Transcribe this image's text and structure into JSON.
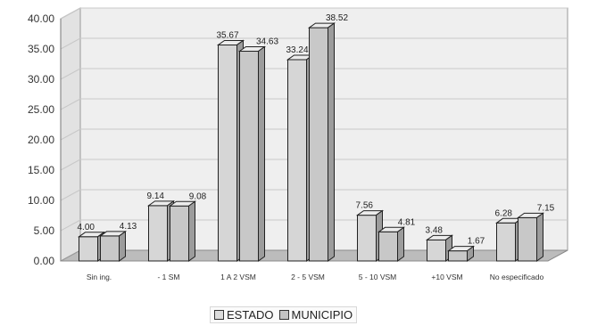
{
  "chart_data": {
    "type": "bar",
    "title": "",
    "xlabel": "",
    "ylabel": "",
    "ylim": [
      0,
      40
    ],
    "yticks": [
      "0.00",
      "5.00",
      "10.00",
      "15.00",
      "20.00",
      "25.00",
      "30.00",
      "35.00",
      "40.00"
    ],
    "categories": [
      "Sin ing.",
      "- 1 SM",
      "1 A 2 VSM",
      "2 - 5 VSM",
      "5 - 10 VSM",
      "+10 VSM",
      "No especificado"
    ],
    "series": [
      {
        "name": "ESTADO",
        "values": [
          4.0,
          9.14,
          35.67,
          33.24,
          7.56,
          3.48,
          6.28
        ],
        "labels": [
          "4.00",
          "9.14",
          "35.67",
          "33.24",
          "7.56",
          "3.48",
          "6.28"
        ],
        "color": "#dcdcdc"
      },
      {
        "name": "MUNICIPIO",
        "values": [
          4.13,
          9.08,
          34.63,
          38.52,
          4.81,
          1.67,
          7.15
        ],
        "labels": [
          "4.13",
          "9.08",
          "34.63",
          "38.52",
          "4.81",
          "1.67",
          "7.15"
        ],
        "color": "#c9c9c9"
      }
    ],
    "grid": true,
    "legend_position": "bottom"
  }
}
